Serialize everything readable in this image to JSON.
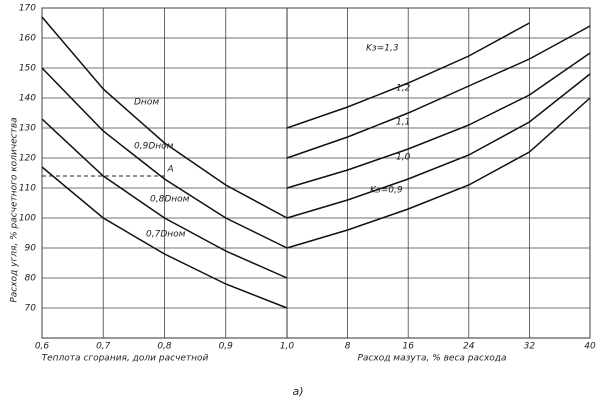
{
  "chart_data": [
    {
      "type": "line",
      "ylabel": "Расход угля, % расчетного количества",
      "xlabel": "Теплота сгорания, доли расчетной",
      "x": [
        0.6,
        0.7,
        0.8,
        0.9,
        1.0
      ],
      "xlim": [
        0.6,
        1.0
      ],
      "xticks": [
        {
          "value": 0.6,
          "label": "0,6"
        },
        {
          "value": 0.7,
          "label": "0,7"
        },
        {
          "value": 0.8,
          "label": "0,8"
        },
        {
          "value": 0.9,
          "label": "0,9"
        },
        {
          "value": 1.0,
          "label": "1,0"
        }
      ],
      "ylim": [
        60,
        170
      ],
      "yticks": [
        70,
        80,
        90,
        100,
        110,
        120,
        130,
        140,
        150,
        160,
        170
      ],
      "grid": true,
      "color": "#111111",
      "series": [
        {
          "name": "Dном",
          "values": [
            167,
            143,
            125,
            111,
            100
          ]
        },
        {
          "name": "0,9Dном",
          "values": [
            150,
            129,
            113,
            100,
            90
          ]
        },
        {
          "name": "0,8Dном",
          "values": [
            133,
            114,
            100,
            89,
            80
          ]
        },
        {
          "name": "0,7Dном",
          "values": [
            117,
            100,
            88,
            78,
            70
          ]
        }
      ],
      "annotations": [
        {
          "text": "A",
          "x": 0.8,
          "y": 114
        }
      ]
    },
    {
      "type": "line",
      "xlabel": "Расход мазута, % веса расхода",
      "x": [
        0,
        8,
        16,
        24,
        32,
        40
      ],
      "xlim": [
        0,
        40
      ],
      "xticks": [
        8,
        16,
        24,
        32,
        40
      ],
      "ylim": [
        60,
        170
      ],
      "grid": true,
      "color": "#111111",
      "series": [
        {
          "name": "Kз=1,3",
          "values": [
            130,
            137,
            145,
            154,
            165,
            null
          ]
        },
        {
          "name": "1,2",
          "values": [
            120,
            127,
            135,
            144,
            153,
            164
          ]
        },
        {
          "name": "1,1",
          "values": [
            110,
            116,
            123,
            131,
            141,
            155
          ]
        },
        {
          "name": "1,0",
          "values": [
            100,
            106,
            113,
            121,
            132,
            148
          ]
        },
        {
          "name": "Kз=0,9",
          "values": [
            90,
            96,
            103,
            111,
            122,
            140
          ]
        }
      ]
    }
  ],
  "caption": "а)"
}
